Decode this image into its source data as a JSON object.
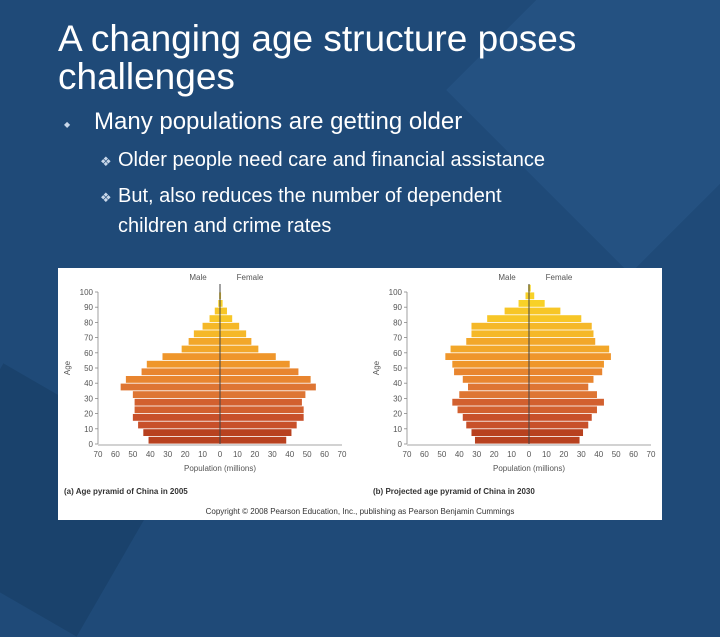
{
  "slide": {
    "title": "A changing age structure poses challenges",
    "bullet1": "Many populations are getting older",
    "sub1": "Older people need care and financial assistance",
    "sub2_line1": "But, also reduces the number of dependent",
    "sub2_line2": "children and crime rates"
  },
  "figure": {
    "copyright": "Copyright © 2008 Pearson Education, Inc., publishing as Pearson Benjamin Cummings"
  },
  "chart_data": [
    {
      "type": "bar",
      "caption_prefix": "(a) Age pyramid of China in 2005",
      "male_label": "Male",
      "female_label": "Female",
      "ylabel": "Age",
      "xlabel": "Population (millions)",
      "age_ticks": [
        "0",
        "10",
        "20",
        "30",
        "40",
        "50",
        "60",
        "70",
        "80",
        "90",
        "100"
      ],
      "x_ticks": [
        "70",
        "60",
        "50",
        "40",
        "30",
        "20",
        "10",
        "0",
        "10",
        "20",
        "30",
        "40",
        "50",
        "60",
        "70"
      ],
      "xlim": [
        -70,
        70
      ],
      "age_groups": [
        "0-4",
        "5-9",
        "10-14",
        "15-19",
        "20-24",
        "25-29",
        "30-34",
        "35-39",
        "40-44",
        "45-49",
        "50-54",
        "55-59",
        "60-64",
        "65-69",
        "70-74",
        "75-79",
        "80-84",
        "85-89",
        "90-94",
        "95-99",
        "100+"
      ],
      "male": [
        41,
        44,
        47,
        50,
        49,
        49,
        50,
        57,
        54,
        45,
        42,
        33,
        22,
        18,
        15,
        10,
        6,
        3,
        1,
        0.5,
        0.2
      ],
      "female": [
        38,
        41,
        44,
        48,
        48,
        47,
        49,
        55,
        52,
        45,
        40,
        32,
        22,
        18,
        15,
        11,
        7,
        4,
        1.5,
        0.6,
        0.2
      ]
    },
    {
      "type": "bar",
      "caption_prefix": "(b) Projected age pyramid of China in 2030",
      "male_label": "Male",
      "female_label": "Female",
      "ylabel": "Age",
      "xlabel": "Population (millions)",
      "age_ticks": [
        "0",
        "10",
        "20",
        "30",
        "40",
        "50",
        "60",
        "70",
        "80",
        "90",
        "100"
      ],
      "x_ticks": [
        "70",
        "60",
        "50",
        "40",
        "30",
        "20",
        "10",
        "0",
        "10",
        "20",
        "30",
        "40",
        "50",
        "60",
        "70"
      ],
      "xlim": [
        -70,
        70
      ],
      "age_groups": [
        "0-4",
        "5-9",
        "10-14",
        "15-19",
        "20-24",
        "25-29",
        "30-34",
        "35-39",
        "40-44",
        "45-49",
        "50-54",
        "55-59",
        "60-64",
        "65-69",
        "70-74",
        "75-79",
        "80-84",
        "85-89",
        "90-94",
        "95-99",
        "100+"
      ],
      "male": [
        31,
        33,
        36,
        38,
        41,
        44,
        40,
        35,
        38,
        43,
        44,
        48,
        45,
        36,
        33,
        33,
        24,
        14,
        6,
        2,
        0.5
      ],
      "female": [
        29,
        31,
        34,
        36,
        39,
        43,
        39,
        34,
        37,
        42,
        43,
        47,
        46,
        38,
        37,
        36,
        30,
        18,
        9,
        3,
        1
      ]
    }
  ]
}
